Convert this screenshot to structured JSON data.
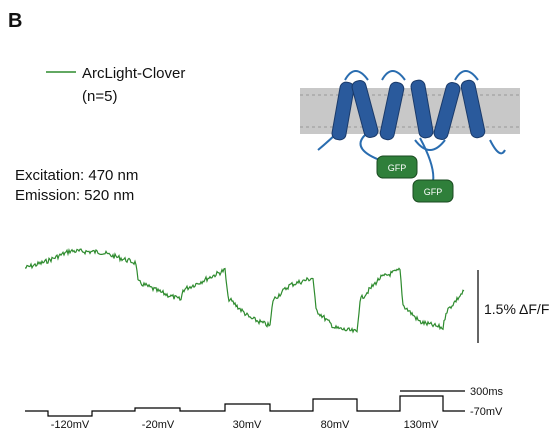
{
  "panel_label": "B",
  "legend": {
    "label": "ArcLight-Clover",
    "note": "(n=5)"
  },
  "conditions": {
    "excitation": "Excitation: 470 nm",
    "emission": "Emission: 520 nm"
  },
  "diagram": {
    "gfp_labels": [
      "GFP",
      "GFP"
    ]
  },
  "scale_bars": {
    "amplitude": "1.5% ΔF/F",
    "time": "300ms"
  },
  "protocol": {
    "holding": "-70mV",
    "steps": [
      "-120mV",
      "-20mV",
      "30mV",
      "80mV",
      "130mV"
    ]
  }
}
